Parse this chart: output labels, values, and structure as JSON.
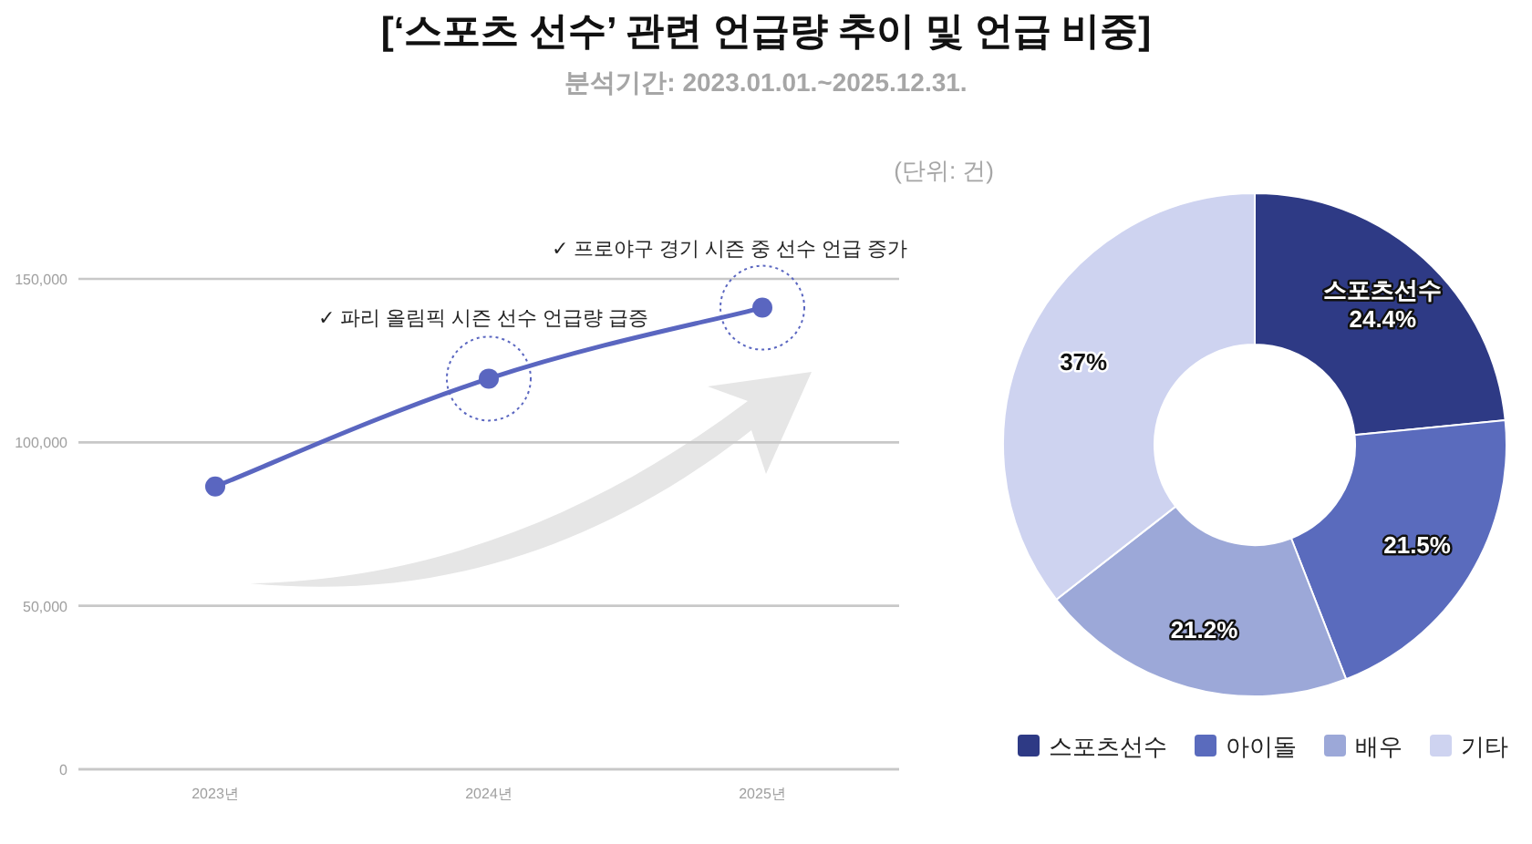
{
  "chart_data": [
    {
      "type": "line",
      "title": "[‘스포츠 선수’ 관련 언급량 추이 및 언급 비중]",
      "subtitle": "분석기간: 2023.01.01.~2025.12.31.",
      "categories": [
        "2023년",
        "2024년",
        "2025년"
      ],
      "series": [
        {
          "color": "#5a66c0",
          "values": [
            86500,
            119500,
            141200
          ]
        }
      ],
      "ylim": [
        0,
        150000
      ],
      "yticks": [
        {
          "value": 0,
          "label": "0"
        },
        {
          "value": 50000,
          "label": "50,000"
        },
        {
          "value": 100000,
          "label": "100,000"
        },
        {
          "value": 150000,
          "label": "150,000"
        }
      ],
      "grid": "y",
      "marker": "circle",
      "line_style": "solid",
      "annotations": [
        "✓ 파리 올림픽 시즌 선수 언급량 급증",
        "✓ 프로야구 경기 시즌 중 선수 언급 증가",
        "(단위: 건)"
      ]
    },
    {
      "type": "donut",
      "categories": [
        "스포츠선수",
        "아이돌",
        "배우",
        "기타"
      ],
      "values": [
        24.4,
        21.5,
        21.2,
        37
      ],
      "colors": [
        "#2e3a85",
        "#5a6bbd",
        "#9ca8d8",
        "#ced3f0"
      ],
      "value_labels": [
        "스포츠선수\n24.4%",
        "21.5%",
        "21.2%",
        "37%"
      ],
      "legend": "bottom"
    }
  ]
}
